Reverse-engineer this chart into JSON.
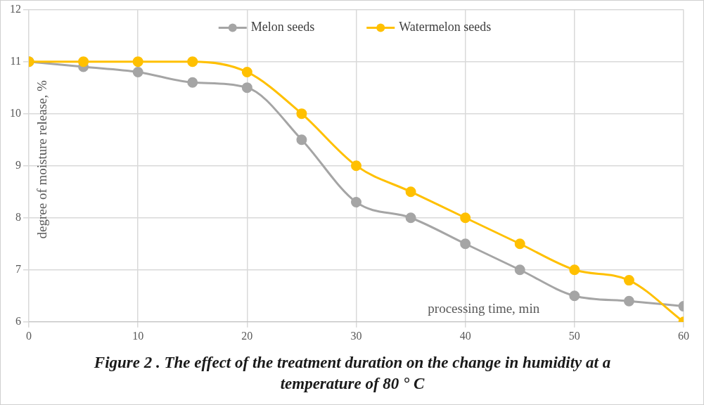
{
  "chart_data": {
    "type": "line",
    "title": "Figure 2 . The effect of the treatment duration on the change in humidity at a temperature of 80 ° C",
    "xlabel": "processing time, min",
    "ylabel": "degree of moisture release, %",
    "x": [
      0,
      5,
      10,
      15,
      20,
      25,
      30,
      35,
      40,
      45,
      50,
      55,
      60
    ],
    "series": [
      {
        "name": "Melon seeds",
        "color": "#a5a5a5",
        "values": [
          11,
          10.9,
          10.8,
          10.6,
          10.5,
          9.5,
          8.3,
          8,
          7.5,
          7,
          6.5,
          6.4,
          6.3
        ]
      },
      {
        "name": "Watermelon seeds",
        "color": "#ffc000",
        "values": [
          11,
          11,
          11,
          11,
          10.8,
          10,
          9,
          8.5,
          8,
          7.5,
          7,
          6.8,
          6
        ]
      }
    ],
    "xlim": [
      0,
      60
    ],
    "xticks": [
      0,
      10,
      20,
      30,
      40,
      50,
      60
    ],
    "ylim": [
      6,
      12
    ],
    "yticks": [
      6,
      7,
      8,
      9,
      10,
      11,
      12
    ],
    "grid": true,
    "legend": "top",
    "marker": "circle",
    "line_style": "solid"
  }
}
